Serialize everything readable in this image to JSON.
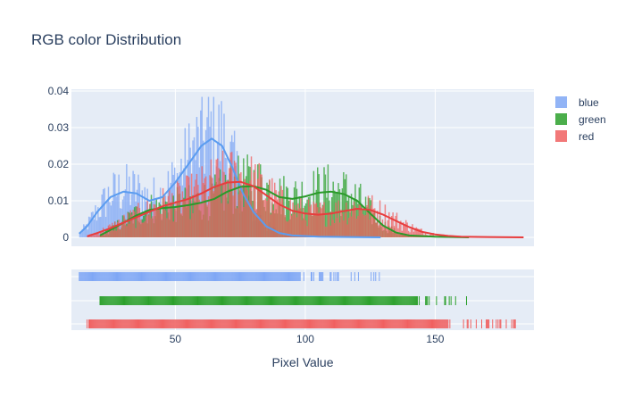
{
  "chart_data": {
    "type": "histogram",
    "title": "RGB color Distribution",
    "xlabel": "Pixel Value",
    "ylabel": "",
    "xlim": [
      10,
      188
    ],
    "ylim": [
      0,
      0.04
    ],
    "yticks": [
      "0",
      "0.01",
      "0.02",
      "0.03",
      "0.04"
    ],
    "xticks": [
      "50",
      "100",
      "150"
    ],
    "xtick_values": [
      50,
      100,
      150
    ],
    "grid": true,
    "legend_position": "top-right",
    "series": [
      {
        "name": "blue",
        "color": "#636efa",
        "bar_color": "#7fa7f5",
        "line_color": "#5a9cf0",
        "range": [
          13,
          129
        ],
        "kde": [
          [
            13,
            0.001
          ],
          [
            16,
            0.003
          ],
          [
            20,
            0.007
          ],
          [
            25,
            0.011
          ],
          [
            30,
            0.0125
          ],
          [
            35,
            0.012
          ],
          [
            40,
            0.01
          ],
          [
            45,
            0.011
          ],
          [
            50,
            0.015
          ],
          [
            55,
            0.02
          ],
          [
            60,
            0.025
          ],
          [
            64,
            0.027
          ],
          [
            68,
            0.025
          ],
          [
            72,
            0.019
          ],
          [
            76,
            0.012
          ],
          [
            80,
            0.007
          ],
          [
            85,
            0.003
          ],
          [
            90,
            0.0012
          ],
          [
            95,
            0.0005
          ],
          [
            105,
            0.0002
          ],
          [
            129,
            0.0
          ]
        ]
      },
      {
        "name": "green",
        "color": "#00cc96",
        "bar_color": "#2ca02c",
        "line_color": "#2a9a2a",
        "range": [
          21,
          163
        ],
        "kde": [
          [
            21,
            0.0005
          ],
          [
            25,
            0.002
          ],
          [
            30,
            0.004
          ],
          [
            35,
            0.006
          ],
          [
            40,
            0.0075
          ],
          [
            45,
            0.008
          ],
          [
            50,
            0.0083
          ],
          [
            55,
            0.0088
          ],
          [
            60,
            0.0095
          ],
          [
            65,
            0.0105
          ],
          [
            70,
            0.0125
          ],
          [
            75,
            0.0138
          ],
          [
            80,
            0.014
          ],
          [
            85,
            0.013
          ],
          [
            90,
            0.011
          ],
          [
            95,
            0.0105
          ],
          [
            100,
            0.0112
          ],
          [
            105,
            0.0122
          ],
          [
            110,
            0.0125
          ],
          [
            115,
            0.0118
          ],
          [
            120,
            0.01
          ],
          [
            125,
            0.0065
          ],
          [
            130,
            0.0032
          ],
          [
            135,
            0.0013
          ],
          [
            140,
            0.0005
          ],
          [
            150,
            0.0002
          ],
          [
            163,
            0.0
          ]
        ]
      },
      {
        "name": "red",
        "color": "#ef553b",
        "bar_color": "#f06060",
        "line_color": "#e83d3d",
        "range": [
          16,
          184
        ],
        "kde": [
          [
            16,
            0.0003
          ],
          [
            20,
            0.0012
          ],
          [
            25,
            0.0025
          ],
          [
            30,
            0.004
          ],
          [
            35,
            0.0055
          ],
          [
            40,
            0.007
          ],
          [
            45,
            0.0085
          ],
          [
            50,
            0.0095
          ],
          [
            55,
            0.0105
          ],
          [
            60,
            0.012
          ],
          [
            65,
            0.0138
          ],
          [
            70,
            0.015
          ],
          [
            75,
            0.0152
          ],
          [
            80,
            0.014
          ],
          [
            85,
            0.0115
          ],
          [
            90,
            0.009
          ],
          [
            95,
            0.0073
          ],
          [
            100,
            0.0065
          ],
          [
            105,
            0.0062
          ],
          [
            110,
            0.0065
          ],
          [
            115,
            0.0072
          ],
          [
            120,
            0.0078
          ],
          [
            125,
            0.0075
          ],
          [
            130,
            0.0062
          ],
          [
            135,
            0.0045
          ],
          [
            140,
            0.0028
          ],
          [
            145,
            0.0015
          ],
          [
            150,
            0.0008
          ],
          [
            155,
            0.0004
          ],
          [
            160,
            0.0002
          ],
          [
            170,
            0.0001
          ],
          [
            184,
            0.0
          ]
        ]
      }
    ]
  }
}
